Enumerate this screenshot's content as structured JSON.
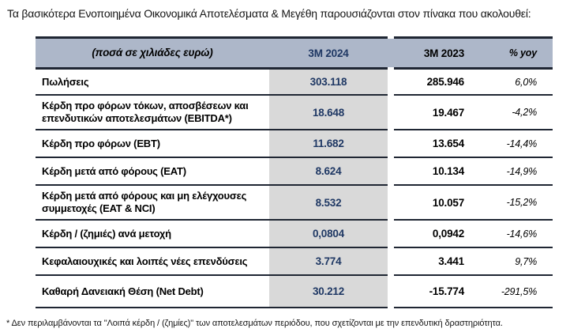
{
  "page": {
    "title": "Τα βασικότερα Ενοποιημένα Οικονομικά Αποτελέσματα & Μεγέθη παρουσιάζονται στον πίνακα που ακολουθεί:",
    "footnote": "* Δεν περιλαμβάνονται τα \"Λοιπά κέρδη / (ζημίες)\" των αποτελεσμάτων περιόδου, που σχετίζονται με την επενδυτική δραστηριότητα."
  },
  "table": {
    "headers": {
      "label": "(ποσά σε χιλιάδες ευρώ)",
      "col_2024": "3M 2024",
      "col_2023": "3M 2023",
      "col_yoy": "% yoy"
    },
    "rows": [
      {
        "label": "Πωλήσεις",
        "v2024": "303.118",
        "v2023": "285.946",
        "yoy": "6,0%"
      },
      {
        "label": "Κέρδη προ φόρων τόκων, αποσβέσεων και επενδυτικών αποτελεσμάτων (EBITDA*)",
        "v2024": "18.648",
        "v2023": "19.467",
        "yoy": "-4,2%"
      },
      {
        "label": "Κέρδη προ φόρων (EBT)",
        "v2024": "11.682",
        "v2023": "13.654",
        "yoy": "-14,4%"
      },
      {
        "label": "Κέρδη μετά από φόρους (EAT)",
        "v2024": "8.624",
        "v2023": "10.134",
        "yoy": "-14,9%"
      },
      {
        "label": "Κέρδη μετά από φόρους και μη ελέγχουσες συμμετοχές (EAT & NCI)",
        "v2024": "8.532",
        "v2023": "10.057",
        "yoy": "-15,2%"
      },
      {
        "label": "Κέρδη / (ζημιές) ανά μετοχή",
        "v2024": "0,0804",
        "v2023": "0,0942",
        "yoy": "-14,6%"
      },
      {
        "label": "Κεφαλαιουχικές και λοιπές νέες επενδύσεις",
        "v2024": "3.774",
        "v2023": "3.441",
        "yoy": "9,7%"
      },
      {
        "label": "Καθαρή Δανειακή Θέση (Net Debt)",
        "v2024": "30.212",
        "v2023": "-15.774",
        "yoy": "-291,5%"
      }
    ],
    "colors": {
      "header_bg": "#adb7c9",
      "accent_col_bg": "#d9d9d9",
      "accent_text": "#1f3864",
      "border": "#1f2633"
    }
  }
}
